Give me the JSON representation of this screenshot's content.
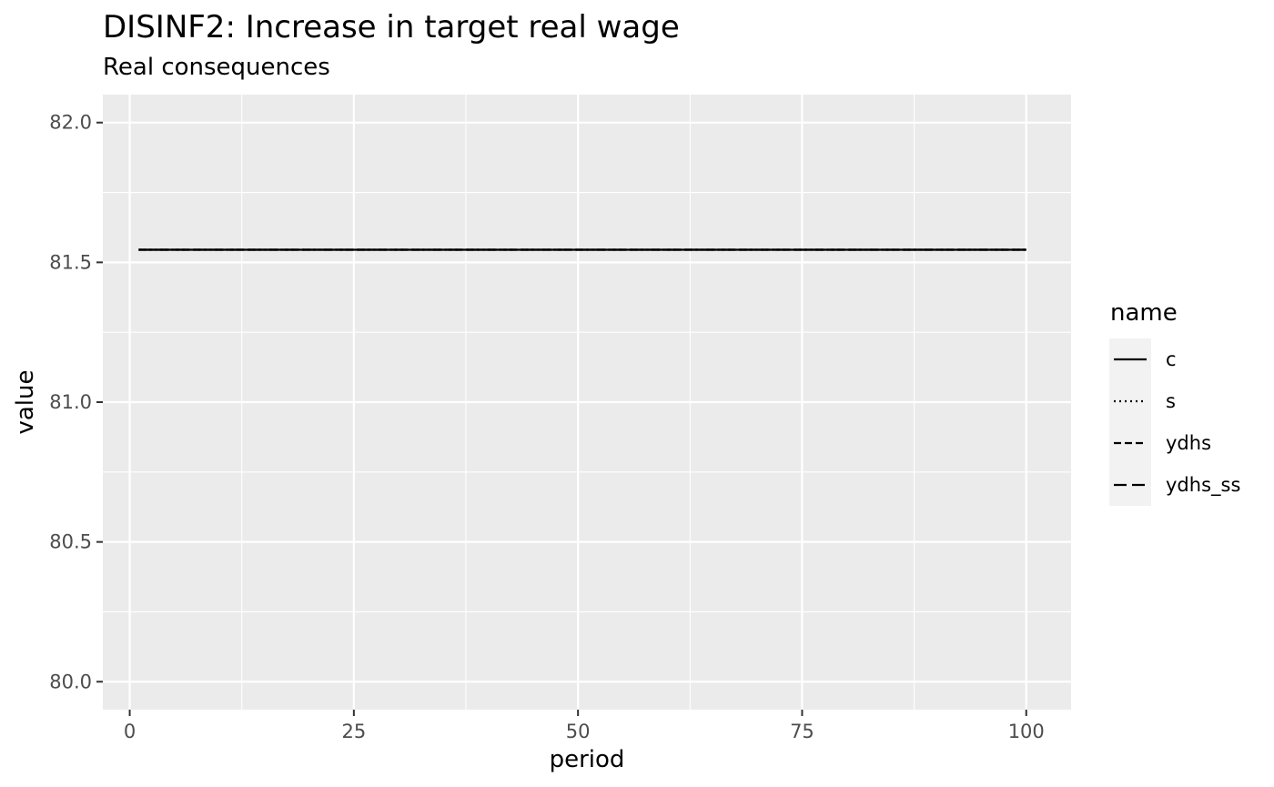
{
  "chart_data": {
    "type": "line",
    "title": "DISINF2: Increase in target real wage",
    "subtitle": "Real consequences",
    "xlabel": "period",
    "ylabel": "value",
    "xlim": [
      -3,
      105
    ],
    "ylim": [
      79.9,
      82.1
    ],
    "x_ticks": [
      0,
      25,
      50,
      75,
      100
    ],
    "x_tick_labels": [
      "0",
      "25",
      "50",
      "75",
      "100"
    ],
    "x_minor_ticks": [
      12.5,
      37.5,
      62.5,
      87.5
    ],
    "y_ticks": [
      80.0,
      80.5,
      81.0,
      81.5,
      82.0
    ],
    "y_tick_labels": [
      "80.0",
      "80.5",
      "81.0",
      "81.5",
      "82.0"
    ],
    "y_minor_ticks": [
      80.25,
      80.75,
      81.25,
      81.75
    ],
    "grid": true,
    "legend": {
      "title": "name",
      "position": "right"
    },
    "x": [
      1,
      100
    ],
    "series": [
      {
        "name": "c",
        "linetype": "solid",
        "values": [
          81.545,
          81.545
        ]
      },
      {
        "name": "s",
        "linetype": "dotted",
        "values": [
          81.545,
          81.545
        ]
      },
      {
        "name": "ydhs",
        "linetype": "dashed",
        "values": [
          81.545,
          81.545
        ]
      },
      {
        "name": "ydhs_ss",
        "linetype": "longdash",
        "values": [
          81.545,
          81.545
        ]
      }
    ],
    "colors": {
      "panel_bg": "#EBEBEB",
      "grid": "#FFFFFF",
      "line": "#000000",
      "tick_text": "#4D4D4D",
      "tick_mark": "#333333",
      "legend_key_bg": "#F2F2F2"
    }
  }
}
